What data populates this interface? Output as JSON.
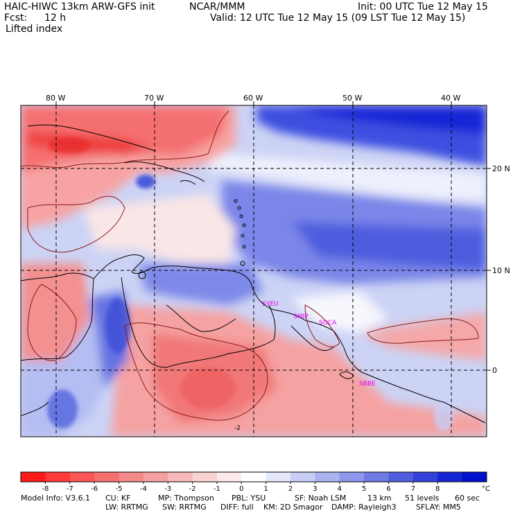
{
  "header": {
    "model": "HAIC-HIWC 13km ARW-GFS init",
    "org": "NCAR/MMM",
    "init": "Init: 00 UTC Tue 12 May 15",
    "fcst_label": "Fcst:",
    "fcst_value": "12 h",
    "valid": "Valid: 12 UTC Tue 12 May 15 (09 LST Tue 12 May 15)",
    "field": "Lifted index"
  },
  "map": {
    "lon_labels": [
      "80 W",
      "70 W",
      "60 W",
      "50 W",
      "40 W"
    ],
    "lat_labels": [
      "20 N",
      "10 N",
      "0"
    ],
    "stations": [
      "SYEU",
      "SMJP",
      "SOCA",
      "SBBE"
    ],
    "contour_label": "-2",
    "colors": {
      "station": "#e600e6",
      "frame": "#000000"
    }
  },
  "colorbar": {
    "labels": [
      "-8",
      "-7",
      "-6",
      "-5",
      "-4",
      "-3",
      "-2",
      "-1",
      "0",
      "1",
      "2",
      "3",
      "4",
      "5",
      "6",
      "7",
      "8"
    ],
    "unit": "°C",
    "colors": [
      "#ff1a1a",
      "#ff3a3a",
      "#fb5656",
      "#f77070",
      "#f58888",
      "#f4a0a0",
      "#f6baba",
      "#f9d2d2",
      "#fdeaea",
      "#ffffff",
      "#e5e8fb",
      "#c8cdf6",
      "#aab2f0",
      "#8c96ea",
      "#6e7ae4",
      "#505ede",
      "#3242d8",
      "#1426d2",
      "#0010cc"
    ]
  },
  "footer": {
    "line1": [
      "Model Info: V3.6.1",
      "CU: KF",
      "MP: Thompson",
      "PBL: YSU",
      "SF: Noah LSM",
      "13 km",
      "51 levels",
      "60 sec"
    ],
    "line2": [
      "LW: RRTMG",
      "SW: RRTMG",
      "DIFF: full",
      "KM: 2D Smagor",
      "DAMP: Rayleigh3",
      "SFLAY: MM5"
    ]
  }
}
